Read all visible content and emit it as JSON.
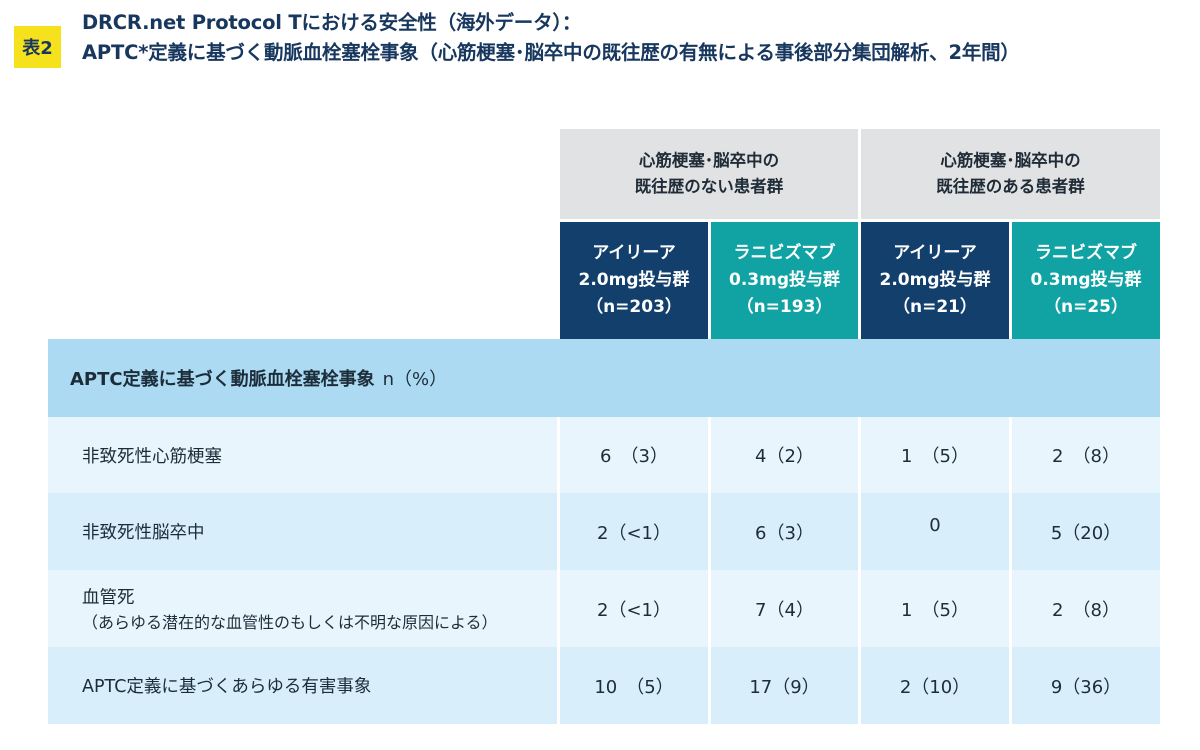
{
  "badge": "表2",
  "title": {
    "line1": "DRCR.net Protocol Tにおける安全性（海外データ）：",
    "line2": "APTC*定義に基づく動脈血栓塞栓事象（心筋梗塞･脳卒中の既往歴の有無による事後部分集団解析、2年間）"
  },
  "groups": [
    {
      "line1": "心筋梗塞･脳卒中の",
      "line2": "既往歴のない患者群"
    },
    {
      "line1": "心筋梗塞･脳卒中の",
      "line2": "既往歴のある患者群"
    }
  ],
  "subheaders": [
    {
      "line1": "アイリーア",
      "line2": "2.0mg投与群",
      "line3": "（n=203）"
    },
    {
      "line1": "ラニビズマブ",
      "line2": "0.3mg投与群",
      "line3": "（n=193）"
    },
    {
      "line1": "アイリーア",
      "line2": "2.0mg投与群",
      "line3": "（n=21）"
    },
    {
      "line1": "ラニビズマブ",
      "line2": "0.3mg投与群",
      "line3": "（n=25）"
    }
  ],
  "section": {
    "label": "APTC定義に基づく動脈血栓塞栓事象",
    "unit": "n（%）"
  },
  "rows": [
    {
      "label": "非致死性心筋梗塞",
      "label2": "",
      "values": [
        "6　（3）",
        "4（2）",
        "1　（5）",
        "2　（8）"
      ]
    },
    {
      "label": "非致死性脳卒中",
      "label2": "",
      "values": [
        "2（<1）",
        "6（3）",
        "0",
        "5（20）"
      ]
    },
    {
      "label": "血管死",
      "label2": "（あらゆる潜在的な血管性のもしくは不明な原因による）",
      "values": [
        "2（<1）",
        "7（4）",
        "1　（5）",
        "2　（8）"
      ]
    },
    {
      "label": "APTC定義に基づくあらゆる有害事象",
      "label2": "",
      "values": [
        "10　（5）",
        "17（9）",
        "2（10）",
        "9（36）"
      ]
    }
  ],
  "colors": {
    "badge": "#f5e11c",
    "title": "#17375e",
    "group_header": "#e1e2e3",
    "navy_header": "#123f6b",
    "teal_header": "#11a3a3",
    "section_row": "#acdaf3",
    "row_light": "#e9f5fc",
    "row_mid": "#d8eefa"
  }
}
